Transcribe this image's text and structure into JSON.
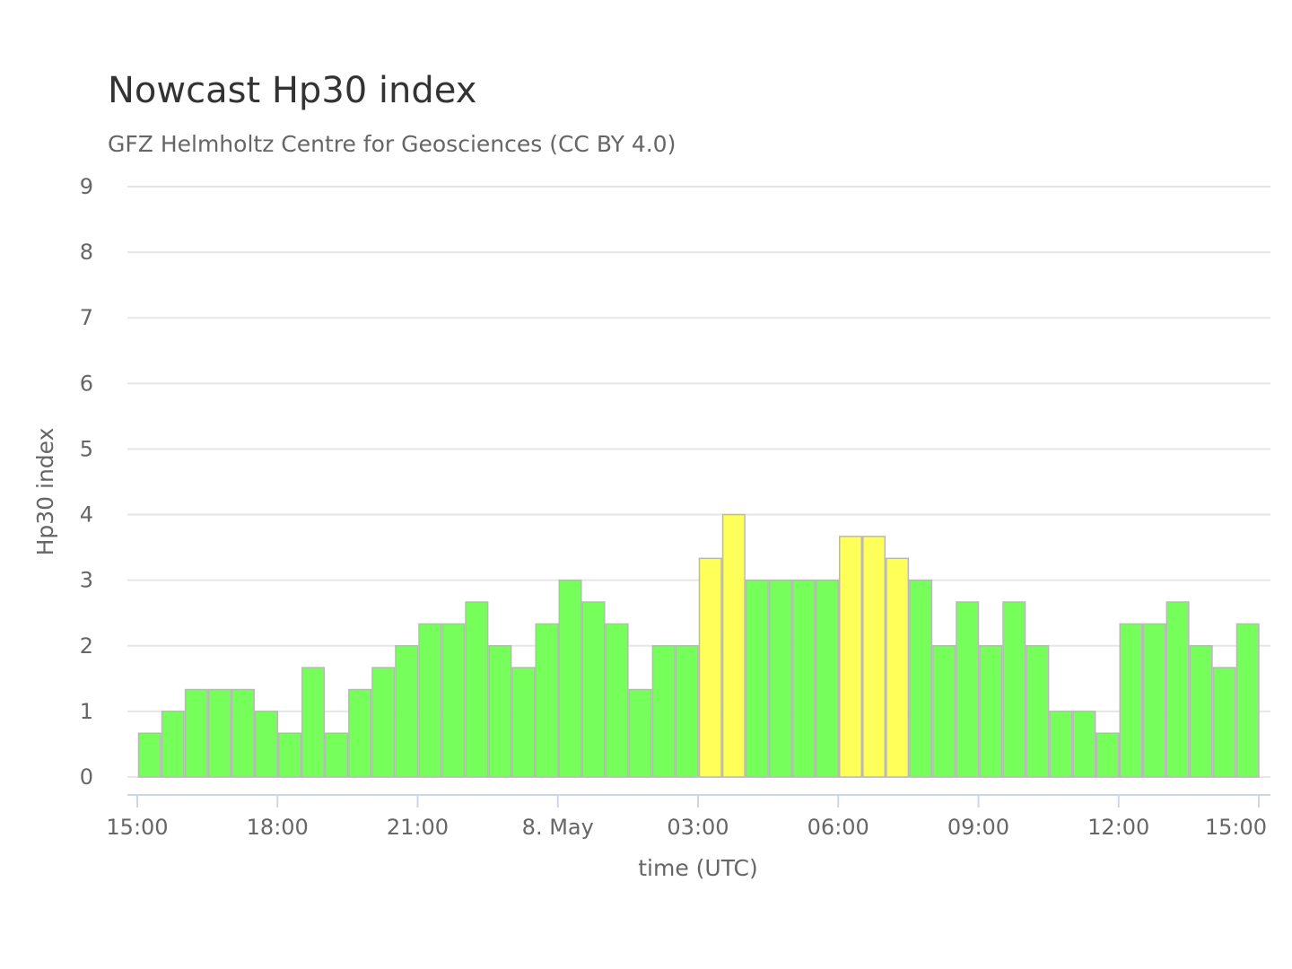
{
  "chart_data": {
    "type": "bar",
    "title": "Nowcast Hp30 index",
    "subtitle": "GFZ Helmholtz Centre for Geosciences (CC BY 4.0)",
    "xlabel": "time (UTC)",
    "ylabel": "Hp30 index",
    "ylim": [
      0,
      9
    ],
    "y_ticks": [
      "0",
      "1",
      "2",
      "3",
      "4",
      "5",
      "6",
      "7",
      "8",
      "9"
    ],
    "x_ticks": [
      {
        "hours": 0,
        "label": "15:00"
      },
      {
        "hours": 3,
        "label": "18:00"
      },
      {
        "hours": 6,
        "label": "21:00"
      },
      {
        "hours": 9,
        "label": "8. May"
      },
      {
        "hours": 12,
        "label": "03:00"
      },
      {
        "hours": 15,
        "label": "06:00"
      },
      {
        "hours": 18,
        "label": "09:00"
      },
      {
        "hours": 21,
        "label": "12:00"
      },
      {
        "hours": 24,
        "label": "15:00"
      }
    ],
    "bar_interval_hours": 0.5,
    "values": [
      0.667,
      1.0,
      1.333,
      1.333,
      1.333,
      1.0,
      0.667,
      1.667,
      0.667,
      1.333,
      1.667,
      2.0,
      2.333,
      2.333,
      2.667,
      2.0,
      1.667,
      2.333,
      3.0,
      2.667,
      2.333,
      1.333,
      2.0,
      2.0,
      3.333,
      4.0,
      3.0,
      3.0,
      3.0,
      3.0,
      3.667,
      3.667,
      3.333,
      3.0,
      2.0,
      2.667,
      2.0,
      2.667,
      2.0,
      1.0,
      1.0,
      0.667,
      2.333,
      2.333,
      2.667,
      2.0,
      1.667,
      2.333
    ],
    "colors": {
      "quiet": "#76ff5a",
      "active": "#ffff5a",
      "grid": "#e6e6e6",
      "axis": "#ccd6eb"
    },
    "active_threshold": 3.2,
    "grid": true,
    "legend": "none"
  }
}
